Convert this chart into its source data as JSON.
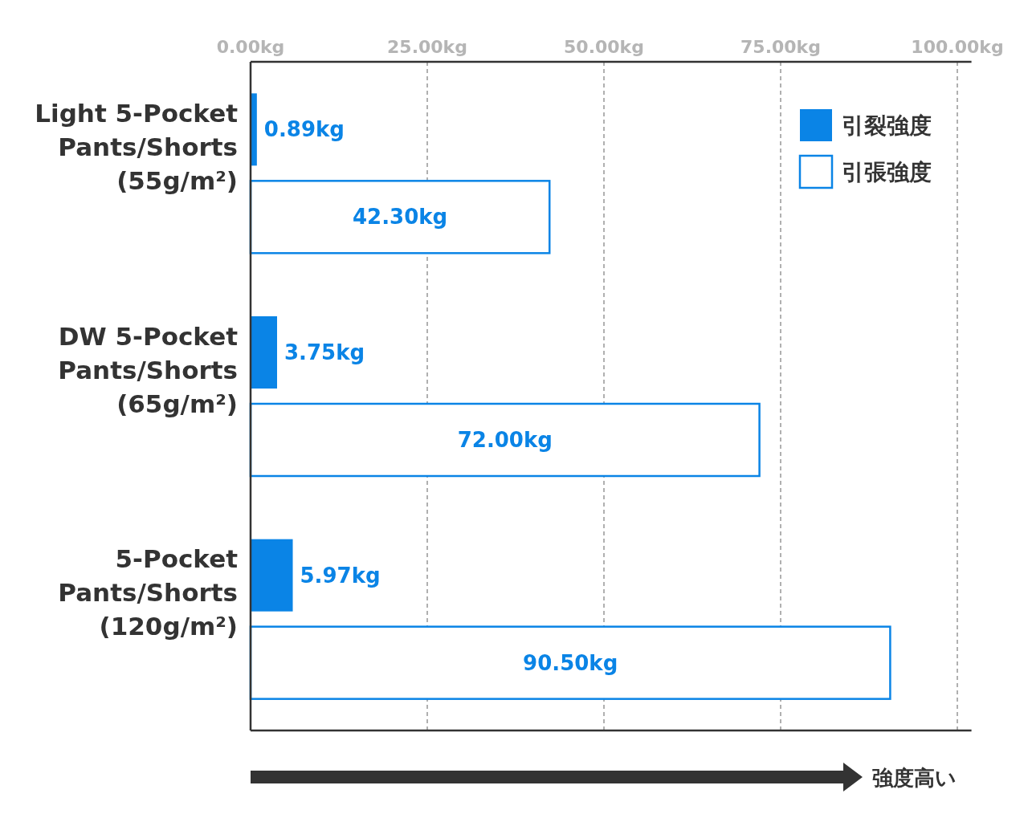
{
  "chart_data": {
    "type": "bar",
    "orientation": "horizontal",
    "categories": [
      "Light 5-Pocket\nPants/Shorts\n(55g/m²)",
      "DW 5-Pocket\nPants/Shorts\n(65g/m²)",
      "5-Pocket\nPants/Shorts\n(120g/m²)"
    ],
    "series": [
      {
        "name": "引裂強度",
        "color": "#0a84e6",
        "values": [
          0.89,
          3.75,
          5.97
        ],
        "value_labels": [
          "0.89kg",
          "3.75kg",
          "5.97kg"
        ]
      },
      {
        "name": "引張強度",
        "color": "#ffffff",
        "values": [
          42.3,
          72.0,
          90.5
        ],
        "value_labels": [
          "42.30kg",
          "72.00kg",
          "90.50kg"
        ]
      }
    ],
    "xlim": [
      0,
      102
    ],
    "xticks": [
      {
        "value": 0,
        "label": "0.00kg"
      },
      {
        "value": 25,
        "label": "25.00kg"
      },
      {
        "value": 50,
        "label": "50.00kg"
      },
      {
        "value": 75,
        "label": "75.00kg"
      },
      {
        "value": 100,
        "label": "100.00kg"
      }
    ],
    "grid": "x",
    "legend": "top right",
    "annotations": [
      "強度高い"
    ]
  }
}
